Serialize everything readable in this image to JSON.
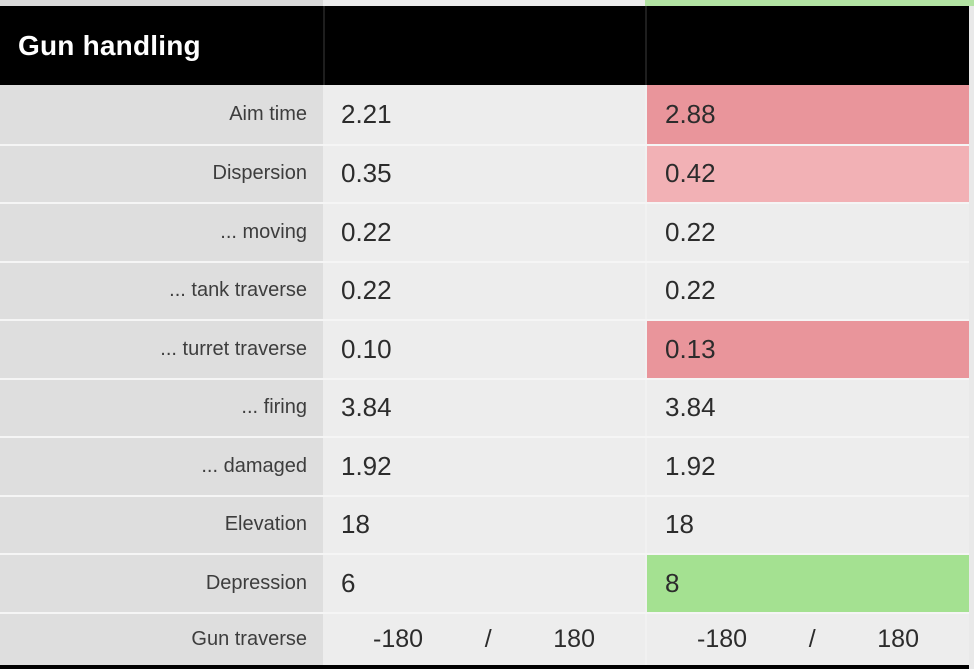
{
  "table": {
    "title": "Gun handling",
    "colors": {
      "red": "#e9959b",
      "pink": "#f2b1b5",
      "green": "#a4e191",
      "top_green": "#b2e2a2"
    },
    "rows": [
      {
        "label": "Aim time",
        "a": "2.21",
        "b": "2.88",
        "b_highlight": "red"
      },
      {
        "label": "Dispersion",
        "a": "0.35",
        "b": "0.42",
        "b_highlight": "pink"
      },
      {
        "label": "... moving",
        "a": "0.22",
        "b": "0.22",
        "b_highlight": "none"
      },
      {
        "label": "... tank traverse",
        "a": "0.22",
        "b": "0.22",
        "b_highlight": "none"
      },
      {
        "label": "... turret traverse",
        "a": "0.10",
        "b": "0.13",
        "b_highlight": "red"
      },
      {
        "label": "... firing",
        "a": "3.84",
        "b": "3.84",
        "b_highlight": "none"
      },
      {
        "label": "... damaged",
        "a": "1.92",
        "b": "1.92",
        "b_highlight": "none"
      },
      {
        "label": "Elevation",
        "a": "18",
        "b": "18",
        "b_highlight": "none"
      },
      {
        "label": "Depression",
        "a": "6",
        "b": "8",
        "b_highlight": "green"
      },
      {
        "label": "Gun traverse",
        "separator": "/",
        "a_min": "-180",
        "a_max": "180",
        "b_min": "-180",
        "b_max": "180",
        "b_highlight": "none"
      }
    ]
  }
}
